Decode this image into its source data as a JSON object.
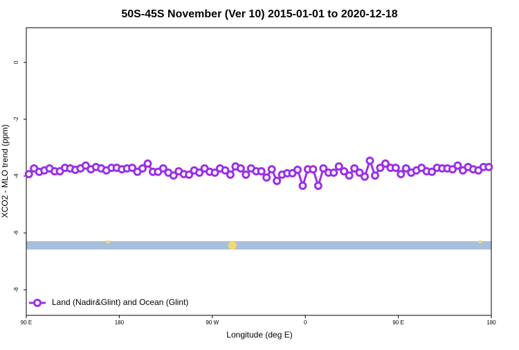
{
  "chart_data": {
    "type": "line",
    "title": "50S-45S November (Ver 10)   2015-01-01 to 2020-12-18",
    "x_label": "Longitude (deg E)",
    "y_label": "XCO2 - MLO trend (ppm)",
    "xlim": [
      90,
      540
    ],
    "ylim": [
      -8.9,
      1.22
    ],
    "xticks": [
      {
        "value": 90,
        "label": "90 E"
      },
      {
        "value": 180,
        "label": "180"
      },
      {
        "value": 270,
        "label": "90 W"
      },
      {
        "value": 360,
        "label": "0"
      },
      {
        "value": 450,
        "label": "90 E"
      },
      {
        "value": 540,
        "label": "180"
      }
    ],
    "yticks": [
      -8,
      -6,
      -4,
      -2,
      0
    ],
    "legend": "bottom-left",
    "x": [
      92.5,
      97.5,
      102.5,
      107.5,
      112.5,
      117.5,
      122.5,
      127.5,
      132.5,
      137.5,
      142.5,
      147.5,
      152.5,
      157.5,
      162.5,
      167.5,
      172.5,
      177.5,
      182.5,
      187.5,
      192.5,
      197.5,
      202.5,
      207.5,
      212.5,
      217.5,
      222.5,
      227.5,
      232.5,
      237.5,
      242.5,
      247.5,
      252.5,
      257.5,
      262.5,
      267.5,
      272.5,
      277.5,
      282.5,
      287.5,
      292.5,
      297.5,
      302.5,
      307.5,
      312.5,
      317.5,
      322.5,
      327.5,
      332.5,
      337.5,
      342.5,
      347.5,
      352.5,
      357.5,
      362.5,
      367.5,
      372.5,
      377.5,
      382.5,
      387.5,
      392.5,
      397.5,
      402.5,
      407.5,
      412.5,
      417.5,
      422.5,
      427.5,
      432.5,
      437.5,
      442.5,
      447.5,
      452.5,
      457.5,
      462.5,
      467.5,
      472.5,
      477.5,
      482.5,
      487.5,
      492.5,
      497.5,
      502.5,
      507.5,
      512.5,
      517.5,
      522.5,
      527.5,
      532.5,
      537.5
    ],
    "series": [
      {
        "name": "Land (Nadir&Glint) and Ocean (Glint)",
        "color": "#9b30e6",
        "values": [
          -3.93,
          -3.73,
          -3.85,
          -3.8,
          -3.73,
          -3.83,
          -3.83,
          -3.71,
          -3.73,
          -3.78,
          -3.73,
          -3.63,
          -3.76,
          -3.68,
          -3.73,
          -3.8,
          -3.71,
          -3.71,
          -3.76,
          -3.73,
          -3.71,
          -3.85,
          -3.73,
          -3.56,
          -3.85,
          -3.85,
          -3.73,
          -3.88,
          -3.98,
          -3.83,
          -3.93,
          -3.95,
          -3.8,
          -3.88,
          -3.73,
          -3.85,
          -3.88,
          -3.73,
          -3.8,
          -3.95,
          -3.66,
          -3.73,
          -3.95,
          -3.73,
          -3.83,
          -3.83,
          -4.05,
          -3.76,
          -4.17,
          -3.95,
          -3.9,
          -3.9,
          -3.78,
          -4.34,
          -3.76,
          -3.76,
          -4.34,
          -3.73,
          -3.88,
          -3.88,
          -3.66,
          -3.83,
          -3.98,
          -3.73,
          -3.88,
          -4.02,
          -3.46,
          -3.98,
          -3.71,
          -3.56,
          -3.71,
          -3.71,
          -3.93,
          -3.73,
          -3.88,
          -3.8,
          -3.71,
          -3.83,
          -3.85,
          -3.71,
          -3.73,
          -3.73,
          -3.76,
          -3.63,
          -3.8,
          -3.68,
          -3.76,
          -3.8,
          -3.68,
          -3.68
        ]
      }
    ]
  }
}
